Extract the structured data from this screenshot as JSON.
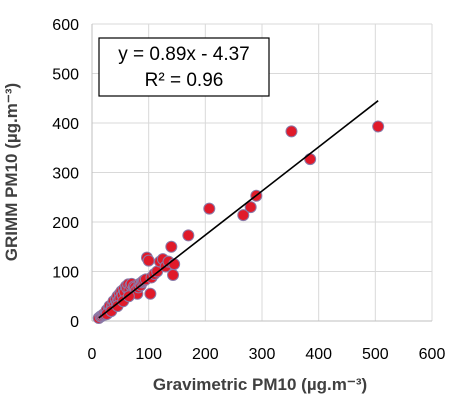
{
  "chart_data": {
    "type": "scatter",
    "xlabel": "Gravimetric PM10 (µg.m⁻³)",
    "ylabel": "GRIMM PM10 (µg.m⁻³)",
    "xlim": [
      0,
      600
    ],
    "ylim": [
      0,
      600
    ],
    "xticks": [
      "0",
      "100",
      "200",
      "300",
      "400",
      "500",
      "600"
    ],
    "yticks": [
      "0",
      "100",
      "200",
      "300",
      "400",
      "500",
      "600"
    ],
    "grid": true,
    "legend": "none",
    "annotations": {
      "equation": "y = 0.89x - 4.37",
      "r_squared": "R² = 0.96"
    },
    "trendline": {
      "slope": 0.89,
      "intercept": -4.37,
      "x_range": [
        12,
        505
      ]
    },
    "marker_color": "#e01a2a",
    "marker_edge_color": "#8a7aa8",
    "line_color": "#000000",
    "points": [
      [
        12,
        6
      ],
      [
        15,
        9
      ],
      [
        17,
        10
      ],
      [
        19,
        12
      ],
      [
        21,
        14
      ],
      [
        23,
        13
      ],
      [
        25,
        18
      ],
      [
        26,
        22
      ],
      [
        28,
        16
      ],
      [
        30,
        25
      ],
      [
        31,
        30
      ],
      [
        33,
        21
      ],
      [
        35,
        28
      ],
      [
        36,
        33
      ],
      [
        38,
        40
      ],
      [
        40,
        31
      ],
      [
        42,
        44
      ],
      [
        44,
        36
      ],
      [
        45,
        50
      ],
      [
        47,
        42
      ],
      [
        49,
        55
      ],
      [
        50,
        46
      ],
      [
        52,
        60
      ],
      [
        54,
        52
      ],
      [
        56,
        64
      ],
      [
        58,
        58
      ],
      [
        60,
        70
      ],
      [
        62,
        66
      ],
      [
        64,
        74
      ],
      [
        66,
        62
      ],
      [
        68,
        72
      ],
      [
        70,
        75
      ],
      [
        72,
        58
      ],
      [
        74,
        70
      ],
      [
        76,
        68
      ],
      [
        78,
        62
      ],
      [
        80,
        55
      ],
      [
        82,
        68
      ],
      [
        84,
        75
      ],
      [
        86,
        72
      ],
      [
        88,
        78
      ],
      [
        90,
        80
      ],
      [
        92,
        82
      ],
      [
        95,
        84
      ],
      [
        97,
        128
      ],
      [
        100,
        122
      ],
      [
        103,
        55
      ],
      [
        105,
        88
      ],
      [
        110,
        95
      ],
      [
        115,
        100
      ],
      [
        120,
        120
      ],
      [
        125,
        125
      ],
      [
        130,
        110
      ],
      [
        135,
        120
      ],
      [
        140,
        150
      ],
      [
        143,
        93
      ],
      [
        145,
        115
      ],
      [
        170,
        173
      ],
      [
        207,
        227
      ],
      [
        267,
        214
      ],
      [
        280,
        230
      ],
      [
        290,
        253
      ],
      [
        352,
        383
      ],
      [
        385,
        327
      ],
      [
        505,
        393
      ],
      [
        26,
        14
      ],
      [
        34,
        20
      ],
      [
        45,
        30
      ],
      [
        55,
        40
      ],
      [
        65,
        50
      ]
    ]
  }
}
